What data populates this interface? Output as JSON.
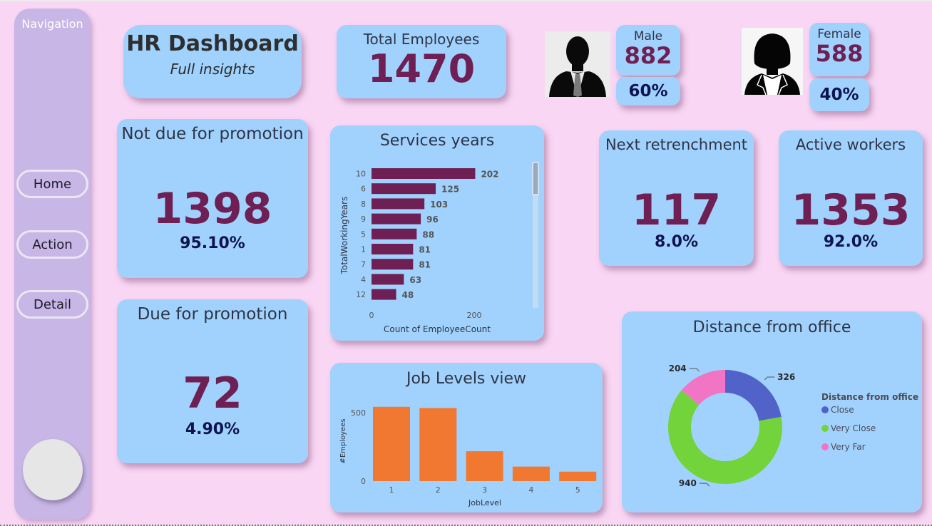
{
  "nav": {
    "title": "Navigation",
    "buttons": [
      {
        "label": "Home"
      },
      {
        "label": "Action"
      },
      {
        "label": "Detail"
      }
    ]
  },
  "header": {
    "title": "HR Dashboard",
    "subtitle": "Full insights"
  },
  "total": {
    "label": "Total Employees",
    "value": "1470"
  },
  "male": {
    "label": "Male",
    "value": "882",
    "pct": "60%",
    "icon": "male-avatar-icon"
  },
  "female": {
    "label": "Female",
    "value": "588",
    "pct": "40%",
    "icon": "female-avatar-icon"
  },
  "not_due": {
    "label": "Not due for promotion",
    "value": "1398",
    "pct": "95.10%"
  },
  "due": {
    "label": "Due for promotion",
    "value": "72",
    "pct": "4.90%"
  },
  "retrench": {
    "label": "Next retrenchment",
    "value": "117",
    "pct": "8.0%"
  },
  "active": {
    "label": "Active workers",
    "value": "1353",
    "pct": "92.0%"
  },
  "colors": {
    "background": "#f9d6f4",
    "card": "#a1d2fd",
    "nav": "#c8b6e6",
    "value": "#6e1f53",
    "pct": "#0e1450",
    "bar_services": "#6e1f53",
    "bar_job": "#f07830",
    "close": "#5163c9",
    "very_close": "#72d43a",
    "very_far": "#f274c4"
  },
  "chart_data": [
    {
      "type": "bar",
      "orientation": "horizontal",
      "title": "Services years",
      "xlabel": "Count of EmployeeCount",
      "ylabel": "TotalWorkingYears",
      "categories": [
        "10",
        "6",
        "8",
        "9",
        "5",
        "1",
        "7",
        "4",
        "12"
      ],
      "values": [
        202,
        125,
        103,
        96,
        88,
        81,
        81,
        63,
        48
      ],
      "xticks": [
        "0",
        "200"
      ],
      "xlim": [
        0,
        300
      ],
      "data_labels": true,
      "scrollbar": true
    },
    {
      "type": "bar",
      "title": "Job Levels view",
      "xlabel": "JobLevel",
      "ylabel": "#Employees",
      "categories": [
        "1",
        "2",
        "3",
        "4",
        "5"
      ],
      "values": [
        543,
        534,
        218,
        106,
        69
      ],
      "yticks": [
        "0",
        "500"
      ],
      "ylim": [
        0,
        560
      ]
    },
    {
      "type": "pie",
      "donut": true,
      "title": "Distance from office",
      "legend_title": "Distance from office",
      "legend_position": "right",
      "slices": [
        {
          "label": "Close",
          "value": 326,
          "color": "#5163c9"
        },
        {
          "label": "Very Close",
          "value": 940,
          "color": "#72d43a"
        },
        {
          "label": "Very Far",
          "value": 204,
          "color": "#f274c4"
        }
      ]
    }
  ]
}
